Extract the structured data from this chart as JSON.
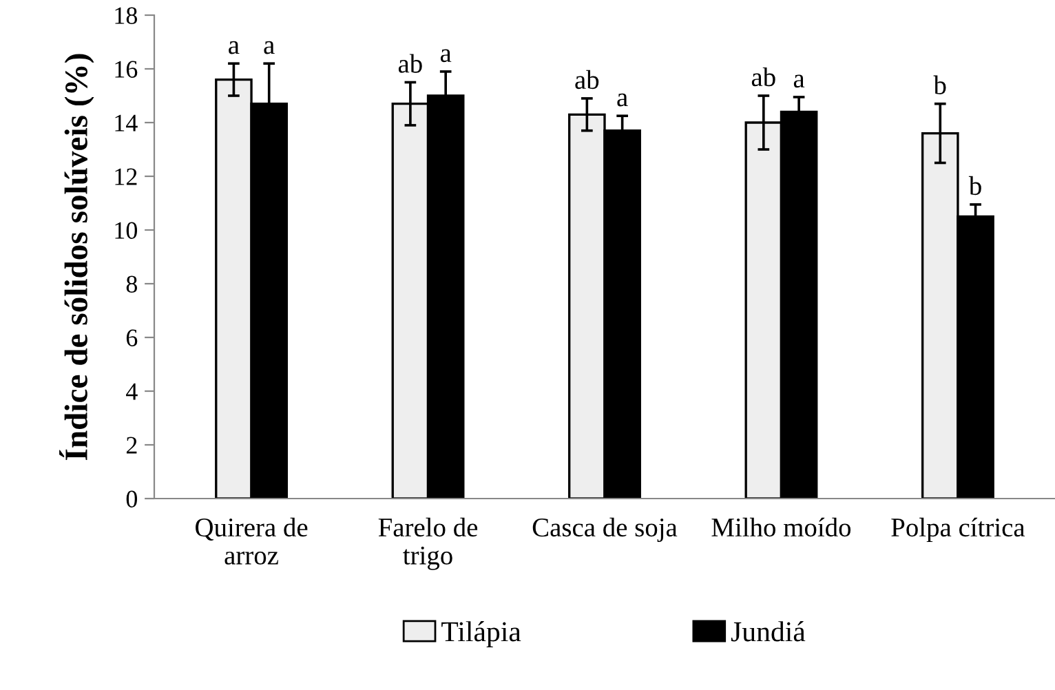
{
  "chart_data": {
    "type": "bar",
    "ylabel": "Índice de sólidos solúveis (%)",
    "categories": [
      "Quirera de arroz",
      "Farelo de trigo",
      "Casca de soja",
      "Milho moído",
      "Polpa cítrica"
    ],
    "series": [
      {
        "name": "Tilápia",
        "color": "#eeeeee",
        "values": [
          15.6,
          14.7,
          14.3,
          14.0,
          13.6
        ],
        "errors": [
          0.6,
          0.8,
          0.6,
          1.0,
          1.1
        ],
        "value_labels": [
          "a",
          "ab",
          "ab",
          "ab",
          "b"
        ]
      },
      {
        "name": "Jundiá",
        "color": "#000000",
        "values": [
          14.7,
          15.0,
          13.7,
          14.4,
          10.5
        ],
        "errors": [
          1.5,
          0.9,
          0.55,
          0.55,
          0.45
        ],
        "value_labels": [
          "a",
          "a",
          "a",
          "a",
          "b"
        ]
      }
    ],
    "ylim": [
      0,
      18
    ],
    "yticks": [
      0,
      2,
      4,
      6,
      8,
      10,
      12,
      14,
      16,
      18
    ],
    "grid": false,
    "legend": "bottom"
  }
}
